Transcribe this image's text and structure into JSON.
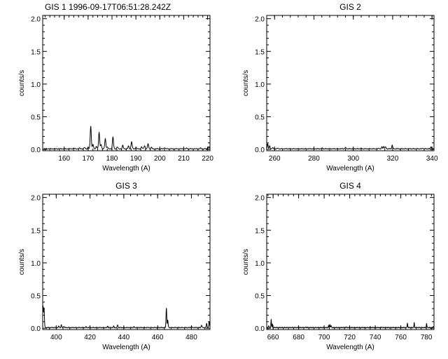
{
  "chart_data": [
    {
      "type": "line",
      "title": "GIS 1 1996-09-17T06:51:28.242Z",
      "xlabel": "Wavelength (A)",
      "ylabel": "counts/s",
      "xlim": [
        151,
        221
      ],
      "ylim": [
        -0.02,
        2.05
      ],
      "xticks": [
        160,
        170,
        180,
        190,
        200,
        210,
        220
      ],
      "yticks": [
        0.0,
        0.5,
        1.0,
        1.5,
        2.0
      ],
      "ytick_labels": [
        "0.0",
        "0.5",
        "1.0",
        "1.5",
        "2.0"
      ],
      "grid": false,
      "baseline": 0.01,
      "peaks": [
        {
          "x": 164.0,
          "y": 0.02
        },
        {
          "x": 166.5,
          "y": 0.02
        },
        {
          "x": 168.5,
          "y": 0.03
        },
        {
          "x": 170.0,
          "y": 0.03
        },
        {
          "x": 171.1,
          "y": 0.36
        },
        {
          "x": 172.0,
          "y": 0.08
        },
        {
          "x": 173.5,
          "y": 0.05
        },
        {
          "x": 174.6,
          "y": 0.26
        },
        {
          "x": 175.4,
          "y": 0.08
        },
        {
          "x": 177.2,
          "y": 0.17
        },
        {
          "x": 178.0,
          "y": 0.04
        },
        {
          "x": 180.4,
          "y": 0.19
        },
        {
          "x": 182.2,
          "y": 0.04
        },
        {
          "x": 184.5,
          "y": 0.06
        },
        {
          "x": 186.9,
          "y": 0.05
        },
        {
          "x": 188.2,
          "y": 0.12
        },
        {
          "x": 190.0,
          "y": 0.03
        },
        {
          "x": 192.4,
          "y": 0.04
        },
        {
          "x": 193.6,
          "y": 0.06
        },
        {
          "x": 195.1,
          "y": 0.09
        },
        {
          "x": 196.5,
          "y": 0.03
        },
        {
          "x": 202.0,
          "y": 0.03
        },
        {
          "x": 211.3,
          "y": 0.02
        },
        {
          "x": 217.0,
          "y": 0.02
        },
        {
          "x": 220.5,
          "y": 0.04
        }
      ]
    },
    {
      "type": "line",
      "title": "GIS 2",
      "xlabel": "Wavelength (A)",
      "ylabel": "counts/s",
      "xlim": [
        256,
        341
      ],
      "ylim": [
        -0.02,
        2.05
      ],
      "xticks": [
        260,
        280,
        300,
        320,
        340
      ],
      "yticks": [
        0.0,
        0.5,
        1.0,
        1.5,
        2.0
      ],
      "ytick_labels": [
        "0.0",
        "0.5",
        "1.0",
        "1.5",
        "2.0"
      ],
      "grid": false,
      "baseline": 0.01,
      "peaks": [
        {
          "x": 256.5,
          "y": 0.09
        },
        {
          "x": 257.5,
          "y": 0.05
        },
        {
          "x": 259.0,
          "y": 0.03
        },
        {
          "x": 261.5,
          "y": 0.02
        },
        {
          "x": 284.2,
          "y": 0.02
        },
        {
          "x": 296.0,
          "y": 0.03
        },
        {
          "x": 303.8,
          "y": 0.02
        },
        {
          "x": 313.0,
          "y": 0.02
        },
        {
          "x": 314.6,
          "y": 0.04
        },
        {
          "x": 315.5,
          "y": 0.05
        },
        {
          "x": 316.4,
          "y": 0.04
        },
        {
          "x": 319.8,
          "y": 0.07
        },
        {
          "x": 335.4,
          "y": 0.02
        },
        {
          "x": 339.5,
          "y": 0.04
        }
      ]
    },
    {
      "type": "line",
      "title": "GIS 3",
      "xlabel": "Wavelength (A)",
      "ylabel": "counts/s",
      "xlim": [
        392,
        491
      ],
      "ylim": [
        -0.02,
        2.05
      ],
      "xticks": [
        400,
        420,
        440,
        460,
        480
      ],
      "yticks": [
        0.0,
        0.5,
        1.0,
        1.5,
        2.0
      ],
      "ytick_labels": [
        "0.0",
        "0.5",
        "1.0",
        "1.5",
        "2.0"
      ],
      "grid": false,
      "baseline": 0.01,
      "peaks": [
        {
          "x": 392.2,
          "y": 0.34
        },
        {
          "x": 392.8,
          "y": 0.3
        },
        {
          "x": 401.5,
          "y": 0.03
        },
        {
          "x": 403.0,
          "y": 0.05
        },
        {
          "x": 404.5,
          "y": 0.03
        },
        {
          "x": 417.6,
          "y": 0.02
        },
        {
          "x": 430.5,
          "y": 0.03
        },
        {
          "x": 434.0,
          "y": 0.03
        },
        {
          "x": 436.3,
          "y": 0.05
        },
        {
          "x": 446.0,
          "y": 0.02
        },
        {
          "x": 465.2,
          "y": 0.31
        },
        {
          "x": 466.0,
          "y": 0.12
        },
        {
          "x": 480.0,
          "y": 0.03
        },
        {
          "x": 486.0,
          "y": 0.05
        },
        {
          "x": 489.0,
          "y": 0.07
        },
        {
          "x": 490.5,
          "y": 0.1
        }
      ]
    },
    {
      "type": "line",
      "title": "GIS 4",
      "xlabel": "Wavelength (A)",
      "ylabel": "counts/s",
      "xlim": [
        655,
        786
      ],
      "ylim": [
        -0.02,
        2.05
      ],
      "xticks": [
        660,
        680,
        700,
        720,
        740,
        760,
        780
      ],
      "yticks": [
        0.0,
        0.5,
        1.0,
        1.5,
        2.0
      ],
      "ytick_labels": [
        "0.0",
        "0.5",
        "1.0",
        "1.5",
        "2.0"
      ],
      "grid": false,
      "baseline": 0.01,
      "peaks": [
        {
          "x": 656.5,
          "y": 0.04
        },
        {
          "x": 658.5,
          "y": 0.13
        },
        {
          "x": 659.5,
          "y": 0.06
        },
        {
          "x": 686.0,
          "y": 0.02
        },
        {
          "x": 703.5,
          "y": 0.04
        },
        {
          "x": 704.5,
          "y": 0.06
        },
        {
          "x": 705.5,
          "y": 0.04
        },
        {
          "x": 717.0,
          "y": 0.02
        },
        {
          "x": 736.0,
          "y": 0.02
        },
        {
          "x": 745.0,
          "y": 0.02
        },
        {
          "x": 765.2,
          "y": 0.08
        },
        {
          "x": 770.5,
          "y": 0.08
        },
        {
          "x": 780.2,
          "y": 0.07
        },
        {
          "x": 785.5,
          "y": 0.03
        }
      ]
    }
  ]
}
